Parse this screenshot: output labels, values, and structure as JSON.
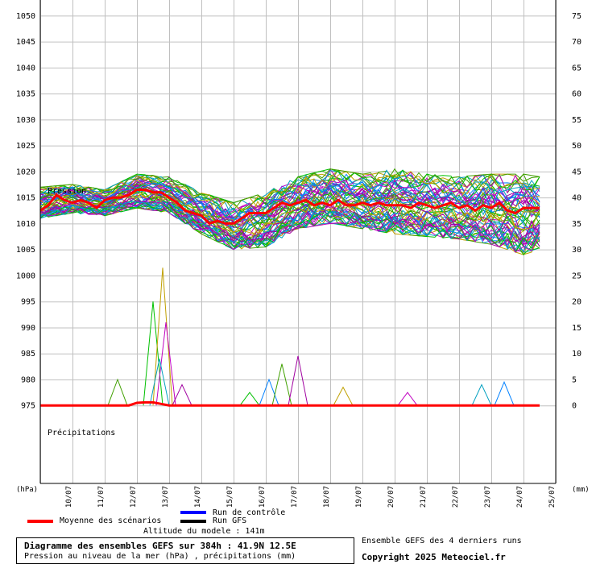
{
  "chart_data": {
    "type": "line",
    "pressure_axis": {
      "unit": "(hPa)",
      "ticks": [
        975,
        980,
        985,
        990,
        995,
        1000,
        1005,
        1010,
        1015,
        1020,
        1025,
        1030,
        1035,
        1040,
        1045,
        1050
      ],
      "range": [
        960,
        1053
      ]
    },
    "precip_axis": {
      "unit": "(mm)",
      "ticks": [
        0,
        5,
        10,
        15,
        20,
        25,
        30,
        35,
        40,
        45,
        50,
        55,
        60,
        65,
        70,
        75
      ],
      "range": [
        -15,
        78
      ]
    },
    "x_axis": {
      "categories": [
        "10/07",
        "11/07",
        "12/07",
        "13/07",
        "14/07",
        "15/07",
        "16/07",
        "17/07",
        "18/07",
        "19/07",
        "20/07",
        "21/07",
        "22/07",
        "23/07",
        "24/07",
        "25/07"
      ],
      "days": 16
    },
    "annotations": {
      "pressure": "Pression",
      "precip": "Précipitations"
    },
    "mean_pressure_series": {
      "name": "Moyenne des scénarios",
      "days": [
        0,
        0.25,
        0.5,
        0.75,
        1,
        1.25,
        1.5,
        1.75,
        2,
        2.25,
        2.5,
        2.75,
        3,
        3.25,
        3.5,
        3.75,
        4,
        4.25,
        4.5,
        4.75,
        5,
        5.25,
        5.5,
        5.75,
        6,
        6.25,
        6.5,
        6.75,
        7,
        7.25,
        7.5,
        7.75,
        8,
        8.25,
        8.5,
        8.75,
        9,
        9.25,
        9.5,
        9.75,
        10,
        10.25,
        10.5,
        10.75,
        11,
        11.25,
        11.5,
        11.75,
        12,
        12.25,
        12.5,
        12.75,
        13,
        13.25,
        13.5,
        13.75,
        14,
        14.25,
        14.5,
        14.75,
        15,
        15.5
      ],
      "values": [
        1012.5,
        1013.5,
        1015.5,
        1014.5,
        1014,
        1014.5,
        1014,
        1013,
        1014.5,
        1015,
        1015,
        1015.5,
        1016.5,
        1016.5,
        1016,
        1016,
        1015,
        1014,
        1012.5,
        1012,
        1011.5,
        1010,
        1010.5,
        1010,
        1010,
        1011,
        1012,
        1012,
        1012,
        1013,
        1014,
        1013.5,
        1014,
        1014.5,
        1013.5,
        1014,
        1013.5,
        1014.5,
        1013.5,
        1013.5,
        1014,
        1013.5,
        1014,
        1013.5,
        1013.5,
        1013.5,
        1013,
        1014,
        1013.5,
        1013,
        1013.5,
        1014,
        1013,
        1013.5,
        1012.5,
        1013.5,
        1013,
        1014,
        1012.5,
        1012,
        1013,
        1013
      ]
    },
    "mean_precip_series": {
      "name": "Moyenne des scénarios",
      "values": [
        0,
        0,
        0,
        0,
        0,
        0,
        0,
        0,
        0,
        0,
        0,
        0,
        0.5,
        0.6,
        0.6,
        0.3,
        0,
        0,
        0,
        0,
        0,
        0,
        0,
        0,
        0,
        0,
        0,
        0,
        0,
        0,
        0,
        0,
        0,
        0,
        0,
        0,
        0,
        0,
        0,
        0,
        0,
        0,
        0,
        0,
        0,
        0,
        0,
        0,
        0,
        0,
        0,
        0,
        0,
        0,
        0,
        0,
        0,
        0,
        0,
        0,
        0,
        0
      ]
    },
    "ensemble_envelope": {
      "days": [
        0,
        1,
        2,
        3,
        4,
        5,
        6,
        7,
        8,
        9,
        10,
        11,
        12,
        13,
        14,
        15,
        15.5
      ],
      "high": [
        1017,
        1017.5,
        1016.5,
        1019.5,
        1019,
        1016,
        1014,
        1016,
        1019,
        1020.5,
        1019.5,
        1020.5,
        1019.5,
        1019,
        1019.5,
        1019.5,
        1019
      ],
      "low": [
        1011,
        1012,
        1011.5,
        1013,
        1012,
        1008,
        1005,
        1005.5,
        1009,
        1010,
        1009,
        1008,
        1007.5,
        1007,
        1006,
        1004,
        1005
      ]
    },
    "precip_spikes": [
      {
        "day": 3.5,
        "mm": 20
      },
      {
        "day": 3.8,
        "mm": 26.5
      },
      {
        "day": 3.9,
        "mm": 16
      },
      {
        "day": 3.7,
        "mm": 9
      },
      {
        "day": 7.1,
        "mm": 5
      },
      {
        "day": 7.5,
        "mm": 8
      },
      {
        "day": 8.0,
        "mm": 9.5
      },
      {
        "day": 6.5,
        "mm": 2.5
      },
      {
        "day": 9.4,
        "mm": 3.5
      },
      {
        "day": 11.4,
        "mm": 2.5
      },
      {
        "day": 13.7,
        "mm": 4
      },
      {
        "day": 14.4,
        "mm": 4.5
      },
      {
        "day": 2.4,
        "mm": 5
      },
      {
        "day": 4.4,
        "mm": 4
      }
    ],
    "legend": {
      "mean": "Moyenne des scénarios",
      "control": "Run de contrôle",
      "gfs": "Run GFS"
    },
    "colors": {
      "mean": "#ff0000",
      "control": "#0000ff",
      "gfs": "#000000",
      "grid": "#c0c0c0",
      "ensemble": [
        "#00c000",
        "#c0a000",
        "#c000c0",
        "#00a0c0",
        "#0080ff",
        "#40a000",
        "#a000a0"
      ]
    }
  },
  "footer": {
    "altitude": "Altitude du modele : 141m",
    "title": "Diagramme des ensembles GEFS sur 384h : 41.9N 12.5E",
    "subtitle": "Pression au niveau de la mer (hPa) , précipitations (mm)",
    "runs_note": "Ensemble GEFS des 4 derniers runs",
    "copyright": "Copyright 2025 Meteociel.fr"
  }
}
